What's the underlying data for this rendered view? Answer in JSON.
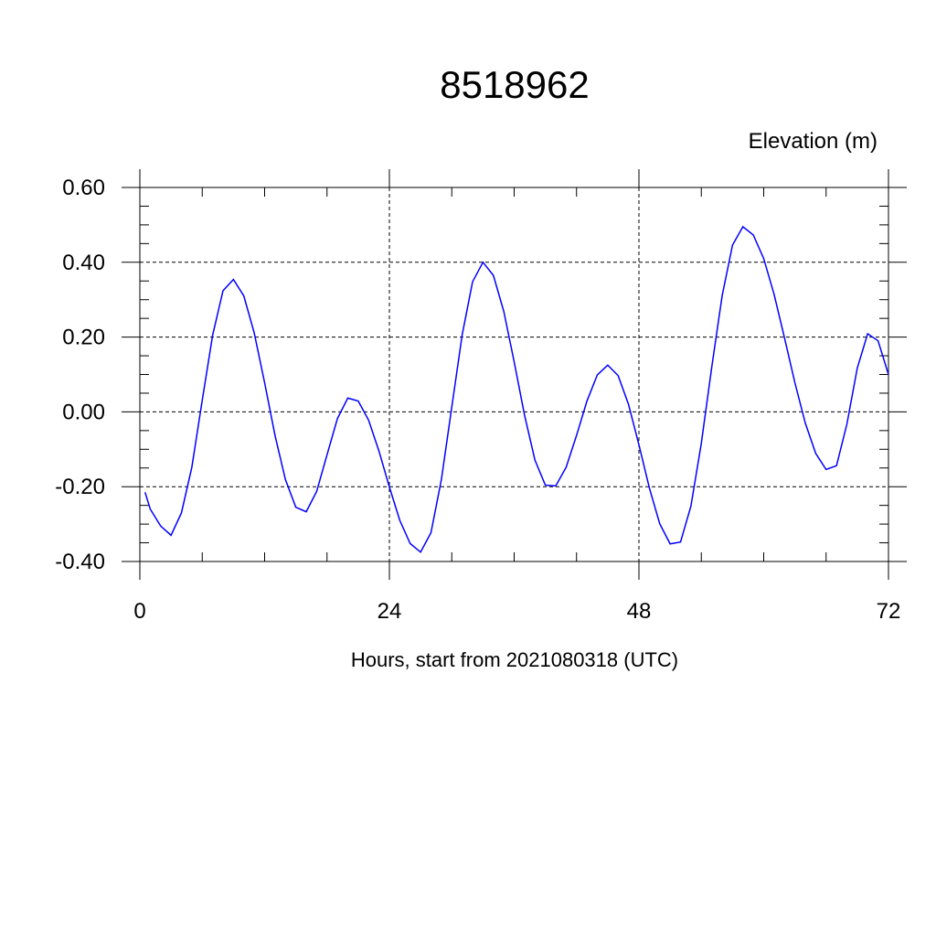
{
  "chart_data": {
    "type": "line",
    "title": "8518962",
    "subtitle": "Elevation (m)",
    "x_label": "Hours, start from 2021080318 (UTC)",
    "x": [
      0.5,
      1,
      2,
      3,
      4,
      5,
      6,
      7,
      8,
      9,
      10,
      11,
      12,
      13,
      14,
      15,
      16,
      17,
      18,
      19,
      20,
      21,
      22,
      23,
      24,
      25,
      26,
      27,
      28,
      29,
      30,
      31,
      32,
      33,
      34,
      35,
      36,
      37,
      38,
      39,
      40,
      41,
      42,
      43,
      44,
      45,
      46,
      47,
      48,
      49,
      50,
      51,
      52,
      53,
      54,
      55,
      56,
      57,
      58,
      59,
      60,
      61,
      62,
      63,
      64,
      65,
      66,
      67,
      68,
      69,
      70,
      71,
      72
    ],
    "series": [
      {
        "name": "Elevation",
        "color": "#0000ff",
        "values": [
          -0.215,
          -0.26,
          -0.305,
          -0.33,
          -0.27,
          -0.148,
          0.031,
          0.205,
          0.324,
          0.354,
          0.31,
          0.211,
          0.078,
          -0.063,
          -0.181,
          -0.255,
          -0.267,
          -0.213,
          -0.115,
          -0.018,
          0.037,
          0.029,
          -0.022,
          -0.105,
          -0.201,
          -0.29,
          -0.352,
          -0.375,
          -0.323,
          -0.181,
          0.0125,
          0.206,
          0.348,
          0.4,
          0.365,
          0.269,
          0.134,
          -0.009,
          -0.129,
          -0.196,
          -0.198,
          -0.148,
          -0.063,
          0.029,
          0.099,
          0.125,
          0.097,
          0.02,
          -0.088,
          -0.203,
          -0.299,
          -0.353,
          -0.348,
          -0.252,
          -0.084,
          0.119,
          0.31,
          0.446,
          0.495,
          0.473,
          0.41,
          0.314,
          0.198,
          0.078,
          -0.03,
          -0.111,
          -0.154,
          -0.144,
          -0.033,
          0.117,
          0.209,
          0.19,
          0.1
        ]
      }
    ],
    "xlim": [
      0,
      72
    ],
    "xticks": [
      0,
      24,
      48,
      72
    ],
    "xminorticks": [
      6,
      12,
      18,
      30,
      36,
      42,
      54,
      60,
      66
    ],
    "ylim": [
      -0.4,
      0.6
    ],
    "yticks": [
      {
        "value": -0.4,
        "label": "-0.40"
      },
      {
        "value": -0.2,
        "label": "-0.20"
      },
      {
        "value": 0,
        "label": "0.00"
      },
      {
        "value": 0.2,
        "label": "0.20"
      },
      {
        "value": 0.4,
        "label": "0.40"
      },
      {
        "value": 0.6,
        "label": "0.60"
      }
    ],
    "yminorticks": [
      -0.35,
      -0.3,
      -0.25,
      -0.15,
      -0.1,
      -0.05,
      0.05,
      0.1,
      0.15,
      0.25,
      0.3,
      0.35,
      0.45,
      0.5,
      0.55
    ],
    "grid": true
  }
}
